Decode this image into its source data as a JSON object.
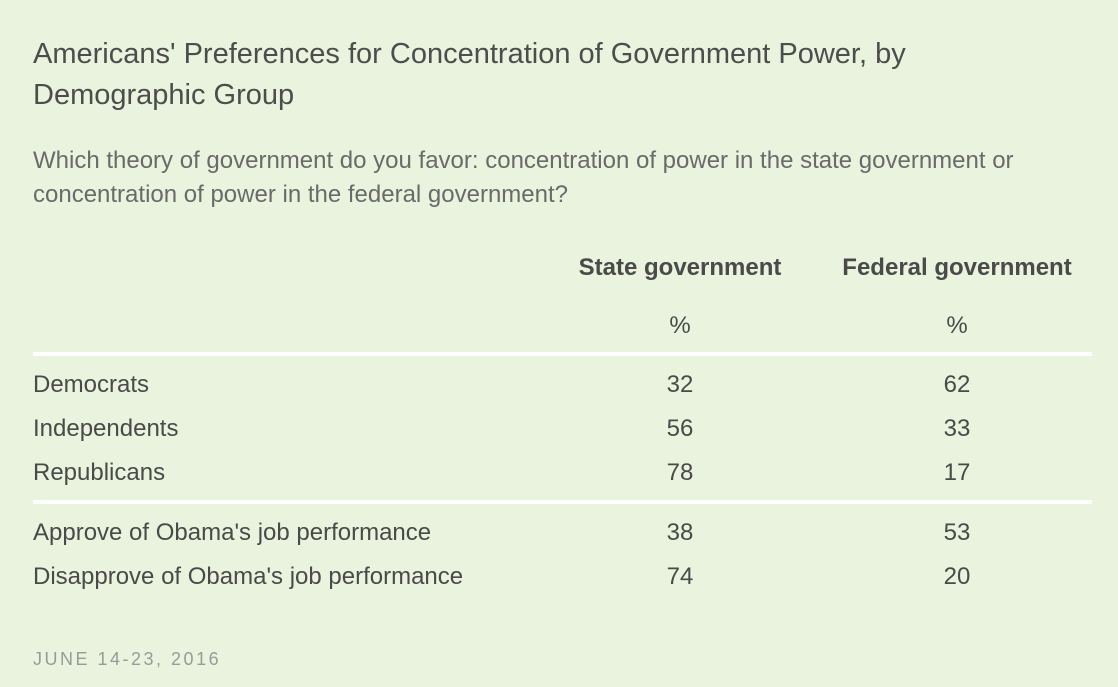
{
  "chart_data": {
    "type": "table",
    "title": "Americans' Preferences for Concentration of Government Power, by Demographic Group",
    "subtitle": "Which theory of government do you favor: concentration of power in the state government or concentration of power in the federal government?",
    "columns": [
      "State government",
      "Federal government"
    ],
    "unit": "%",
    "groups": [
      {
        "rows": [
          {
            "label": "Democrats",
            "values": [
              32,
              62
            ]
          },
          {
            "label": "Independents",
            "values": [
              56,
              33
            ]
          },
          {
            "label": "Republicans",
            "values": [
              78,
              17
            ]
          }
        ]
      },
      {
        "rows": [
          {
            "label": "Approve of Obama's job performance",
            "values": [
              38,
              53
            ]
          },
          {
            "label": "Disapprove of Obama's job performance",
            "values": [
              74,
              20
            ]
          }
        ]
      }
    ],
    "footer": "JUNE 14-23, 2016"
  }
}
